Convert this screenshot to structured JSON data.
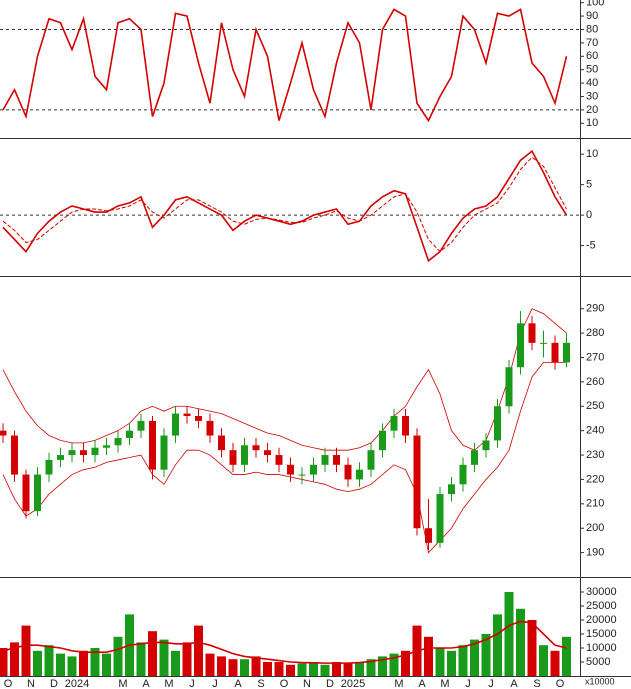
{
  "chart_data": [
    {
      "type": "line",
      "color": "#d40000",
      "ylim": [
        -1,
        102
      ],
      "yticks": [
        10,
        20,
        30,
        40,
        50,
        60,
        70,
        80,
        90,
        100
      ],
      "ref_lines": [
        80,
        20
      ],
      "values": [
        20,
        35,
        15,
        60,
        88,
        85,
        65,
        88,
        45,
        35,
        85,
        88,
        80,
        15,
        40,
        92,
        90,
        55,
        25,
        85,
        50,
        30,
        80,
        60,
        12,
        40,
        70,
        35,
        15,
        55,
        85,
        70,
        20,
        80,
        95,
        90,
        25,
        12,
        30,
        45,
        90,
        80,
        55,
        92,
        90,
        95,
        55,
        45,
        25,
        60
      ]
    },
    {
      "type": "line",
      "ylim": [
        -10,
        12.5
      ],
      "yticks": [
        -5,
        0,
        5,
        10
      ],
      "ref_lines": [
        0
      ],
      "series": [
        {
          "color": "#d40000",
          "dash": false,
          "values": [
            -2,
            -4,
            -6,
            -3,
            -1,
            0.5,
            1.5,
            1,
            0.5,
            0.5,
            1.5,
            2,
            3,
            -2,
            0,
            2.5,
            3,
            2,
            1,
            0,
            -2.5,
            -1,
            0,
            -0.5,
            -1,
            -1.5,
            -1,
            0,
            0.5,
            1,
            -1.5,
            -1,
            1.5,
            3,
            4,
            3.5,
            -2,
            -7.5,
            -6,
            -3,
            -0.5,
            1,
            1.5,
            3,
            6,
            9,
            10.5,
            7,
            3,
            0
          ]
        },
        {
          "color": "#d40000",
          "dash": true,
          "values": [
            -1,
            -2.5,
            -4.5,
            -4,
            -2.5,
            -1,
            0.5,
            1,
            1,
            0.7,
            1,
            1.5,
            2.5,
            0.5,
            -0.5,
            1,
            2.5,
            2.5,
            1.5,
            0.5,
            -1,
            -1.5,
            -0.7,
            -0.5,
            -0.8,
            -1.2,
            -1.2,
            -0.5,
            0,
            0.7,
            -0.5,
            -1,
            0,
            1.5,
            3,
            3.5,
            0.5,
            -4,
            -6,
            -4.5,
            -2,
            0,
            1,
            2,
            4.5,
            7.5,
            9.5,
            8,
            4.5,
            1
          ]
        }
      ]
    },
    {
      "type": "candlestick",
      "ylim": [
        180,
        303
      ],
      "yticks": [
        190,
        200,
        210,
        220,
        230,
        240,
        250,
        260,
        270,
        280,
        290
      ],
      "up_color": "#1a9a1a",
      "down_color": "#d40000",
      "open": [
        240,
        238,
        222,
        207,
        222,
        228,
        230,
        232,
        230,
        233,
        234,
        237,
        240,
        244,
        224,
        238,
        247,
        246,
        244,
        238,
        232,
        226,
        234,
        232,
        230,
        226,
        222,
        222,
        226,
        230,
        226,
        220,
        224,
        232,
        240,
        246,
        238,
        200,
        194,
        214,
        218,
        226,
        232,
        236,
        250,
        266,
        284,
        276,
        276,
        268
      ],
      "high": [
        243,
        240,
        224,
        225,
        231,
        233,
        235,
        235,
        236,
        237,
        240,
        243,
        247,
        246,
        241,
        250,
        250,
        249,
        247,
        241,
        235,
        237,
        237,
        235,
        233,
        229,
        225,
        229,
        233,
        233,
        229,
        227,
        235,
        243,
        249,
        249,
        241,
        212,
        217,
        221,
        229,
        235,
        239,
        253,
        269,
        289,
        287,
        281,
        279,
        280
      ],
      "low": [
        235,
        219,
        204,
        205,
        219,
        225,
        227,
        227,
        227,
        230,
        231,
        234,
        237,
        220,
        221,
        235,
        243,
        241,
        235,
        229,
        223,
        223,
        229,
        227,
        223,
        219,
        218,
        219,
        223,
        223,
        217,
        217,
        221,
        229,
        237,
        235,
        197,
        191,
        192,
        211,
        215,
        223,
        229,
        233,
        247,
        263,
        273,
        270,
        265,
        266
      ],
      "close": [
        238,
        222,
        207,
        222,
        228,
        230,
        232,
        230,
        233,
        234,
        237,
        240,
        244,
        224,
        238,
        247,
        246,
        244,
        238,
        232,
        226,
        234,
        232,
        230,
        226,
        222,
        222,
        226,
        230,
        226,
        220,
        224,
        232,
        240,
        246,
        238,
        200,
        194,
        214,
        218,
        226,
        232,
        236,
        250,
        266,
        284,
        276,
        276,
        268,
        276
      ],
      "series": [
        {
          "color": "#d40000",
          "values": [
            265,
            256,
            248,
            242,
            238,
            236,
            235,
            235,
            236,
            238,
            240,
            243,
            248,
            250,
            248,
            250,
            250,
            249,
            248,
            247,
            245,
            243,
            241,
            239,
            238,
            236,
            234,
            233,
            232,
            232,
            232,
            233,
            235,
            240,
            246,
            250,
            258,
            265,
            255,
            240,
            234,
            232,
            236,
            248,
            262,
            280,
            290,
            288,
            284,
            280
          ]
        },
        {
          "color": "#d40000",
          "values": [
            222,
            212,
            205,
            208,
            214,
            218,
            222,
            224,
            225,
            227,
            228,
            229,
            230,
            222,
            218,
            226,
            232,
            232,
            230,
            226,
            222,
            222,
            223,
            222,
            222,
            221,
            220,
            219,
            218,
            216,
            215,
            216,
            218,
            222,
            226,
            224,
            214,
            190,
            195,
            200,
            208,
            214,
            220,
            225,
            232,
            248,
            262,
            268,
            268,
            268
          ]
        }
      ]
    },
    {
      "type": "bar",
      "ylim": [
        0,
        35000
      ],
      "yticks": [
        5000,
        10000,
        15000,
        20000,
        25000,
        30000
      ],
      "unit_label": "x10000",
      "categories": [
        "O",
        null,
        "N",
        null,
        "D",
        null,
        "2024",
        null,
        null,
        null,
        "M",
        null,
        "A",
        null,
        "M",
        null,
        "J",
        null,
        "J",
        null,
        "A",
        null,
        "S",
        null,
        "O",
        null,
        "N",
        null,
        "D",
        null,
        "2025",
        null,
        null,
        null,
        "M",
        null,
        "A",
        null,
        "M",
        null,
        "J",
        null,
        "J",
        null,
        "A",
        null,
        "S",
        null,
        "O",
        null
      ],
      "values": [
        10000,
        12000,
        18000,
        9000,
        11000,
        8000,
        7000,
        9000,
        10000,
        8000,
        14000,
        22000,
        12000,
        16000,
        13000,
        9000,
        12000,
        18000,
        8000,
        7000,
        6000,
        6000,
        7000,
        5000,
        5000,
        4000,
        4500,
        5000,
        4000,
        5000,
        4500,
        5000,
        6000,
        7000,
        8000,
        9000,
        18000,
        14000,
        10000,
        9000,
        11000,
        13000,
        15000,
        22000,
        30000,
        24000,
        20000,
        11000,
        9000,
        14000
      ],
      "series": [
        {
          "color": "#d40000",
          "values": [
            9000,
            10000,
            11000,
            11000,
            10500,
            10000,
            9000,
            8500,
            8500,
            8500,
            9500,
            11000,
            11500,
            12000,
            12000,
            11500,
            11500,
            12000,
            11000,
            9500,
            8000,
            7000,
            6500,
            6000,
            5500,
            5000,
            4800,
            4700,
            4600,
            4600,
            4600,
            4800,
            5200,
            5800,
            6500,
            7500,
            9000,
            10000,
            10000,
            10000,
            10500,
            11500,
            13000,
            15000,
            18000,
            19500,
            19000,
            15000,
            11000,
            10000
          ]
        }
      ]
    }
  ]
}
